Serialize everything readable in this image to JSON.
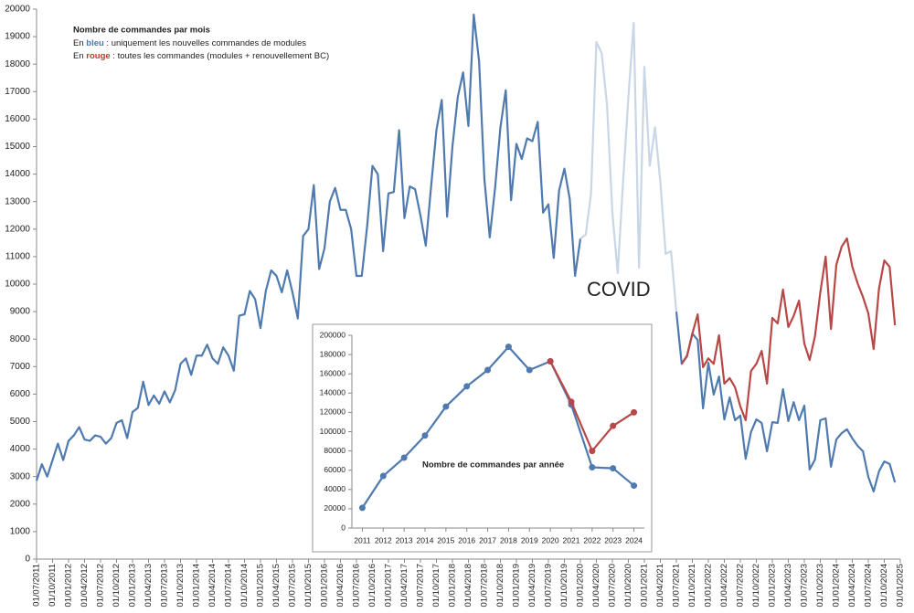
{
  "chart_data": [
    {
      "type": "line",
      "title": "Nombre de commandes par mois",
      "notes": [
        {
          "parts": [
            "En ",
            "bleu",
            " : uniquement les nouvelles commandes de modules"
          ],
          "color": "#4a78b0"
        },
        {
          "parts": [
            "En ",
            "rouge",
            " :  toutes les commandes  (modules + renouvellement BC)"
          ],
          "color": "#c0392b"
        }
      ],
      "highlight": {
        "label": "COVID",
        "from": "01/01/2020",
        "to": "01/07/2021",
        "color": "#c8d6e5",
        "label_color": "#c2cfdc"
      },
      "categories": [
        "01/07/2011",
        null,
        null,
        "01/10/2011",
        null,
        null,
        "01/01/2012",
        null,
        null,
        "01/04/2012",
        null,
        null,
        "01/07/2012",
        null,
        null,
        "01/10/2012",
        null,
        null,
        "01/01/2013",
        null,
        null,
        "01/04/2013",
        null,
        null,
        "01/07/2013",
        null,
        null,
        "01/10/2013",
        null,
        null,
        "01/01/2014",
        null,
        null,
        "01/04/2014",
        null,
        null,
        "01/07/2014",
        null,
        null,
        "01/10/2014",
        null,
        null,
        "01/01/2015",
        null,
        null,
        "01/04/2015",
        null,
        null,
        "01/07/2015",
        null,
        null,
        "01/10/2015",
        null,
        null,
        "01/01/2016",
        null,
        null,
        "01/04/2016",
        null,
        null,
        "01/07/2016",
        null,
        null,
        "01/10/2016",
        null,
        null,
        "01/01/2017",
        null,
        null,
        "01/04/2017",
        null,
        null,
        "01/07/2017",
        null,
        null,
        "01/10/2017",
        null,
        null,
        "01/01/2018",
        null,
        null,
        "01/04/2018",
        null,
        null,
        "01/07/2018",
        null,
        null,
        "01/10/2018",
        null,
        null,
        "01/01/2019",
        null,
        null,
        "01/04/2019",
        null,
        null,
        "01/07/2019",
        null,
        null,
        "01/10/2019",
        null,
        null,
        "01/01/2020",
        null,
        null,
        "01/04/2020",
        null,
        null,
        "01/07/2020",
        null,
        null,
        "01/10/2020",
        null,
        null,
        "01/01/2021",
        null,
        null,
        "01/04/2021",
        null,
        null,
        "01/07/2021",
        null,
        null,
        "01/10/2021",
        null,
        null,
        "01/01/2022",
        null,
        null,
        "01/04/2022",
        null,
        null,
        "01/07/2022",
        null,
        null,
        "01/10/2022",
        null,
        null,
        "01/01/2023",
        null,
        null,
        "01/04/2023",
        null,
        null,
        "01/07/2023",
        null,
        null,
        "01/10/2023",
        null,
        null,
        "01/01/2024",
        null,
        null,
        "01/04/2024",
        null,
        null,
        "01/07/2024",
        null,
        null,
        "01/10/2024",
        null,
        null,
        "01/01/2025"
      ],
      "series": [
        {
          "color": "#4f7ab0",
          "values": [
            2850,
            3450,
            3000,
            3600,
            4200,
            3600,
            4300,
            4500,
            4800,
            4350,
            4300,
            4500,
            4450,
            4200,
            4400,
            4950,
            5050,
            4400,
            5350,
            5500,
            6450,
            5600,
            5950,
            5650,
            6100,
            5700,
            6150,
            7100,
            7300,
            6700,
            7400,
            7400,
            7800,
            7300,
            7100,
            7700,
            7400,
            6850,
            8850,
            8900,
            9750,
            9450,
            8400,
            9750,
            10500,
            10300,
            9700,
            10500,
            9700,
            8750,
            11750,
            12000,
            13600,
            10550,
            11300,
            13000,
            13500,
            12700,
            12700,
            12000,
            10300,
            10300,
            12100,
            14300,
            14000,
            11200,
            13300,
            13350,
            15600,
            12400,
            13550,
            13450,
            12500,
            11400,
            13550,
            15600,
            16700,
            12450,
            15000,
            16800,
            17700,
            15750,
            19800,
            18100,
            13800,
            11700,
            13500,
            15700,
            17050,
            13050,
            15100,
            14550,
            15300,
            15200,
            15900,
            12600,
            12900,
            10950,
            13400,
            14200,
            13100,
            10300,
            11650,
            11800,
            13300,
            18800,
            18400,
            16500,
            12600,
            10400,
            13700,
            16800,
            19500,
            10600,
            17900,
            14300,
            15700,
            13700,
            11100,
            11200,
            9000,
            7100,
            7370,
            8200,
            7970,
            5480,
            7140,
            5980,
            6640,
            5080,
            5880,
            5050,
            5220,
            3650,
            4620,
            5080,
            4950,
            3920,
            4980,
            4950,
            6180,
            5020,
            5710,
            5050,
            5580,
            3260,
            3620,
            5050,
            5120,
            3360,
            4350,
            4580,
            4720,
            4390,
            4120,
            3920,
            2990,
            2460,
            3190,
            3550,
            3460,
            2790,
            null
          ]
        },
        {
          "color": "#b84747",
          "values": [
            null,
            null,
            null,
            null,
            null,
            null,
            null,
            null,
            null,
            null,
            null,
            null,
            null,
            null,
            null,
            null,
            null,
            null,
            null,
            null,
            null,
            null,
            null,
            null,
            null,
            null,
            null,
            null,
            null,
            null,
            null,
            null,
            null,
            null,
            null,
            null,
            null,
            null,
            null,
            null,
            null,
            null,
            null,
            null,
            null,
            null,
            null,
            null,
            null,
            null,
            null,
            null,
            null,
            null,
            null,
            null,
            null,
            null,
            null,
            null,
            null,
            null,
            null,
            null,
            null,
            null,
            null,
            null,
            null,
            null,
            null,
            null,
            null,
            null,
            null,
            null,
            null,
            null,
            null,
            null,
            null,
            null,
            null,
            null,
            null,
            null,
            null,
            null,
            null,
            null,
            null,
            null,
            null,
            null,
            null,
            null,
            null,
            null,
            null,
            null,
            null,
            null,
            null,
            null,
            null,
            null,
            null,
            null,
            null,
            null,
            null,
            null,
            null,
            null,
            null,
            null,
            null,
            null,
            null,
            null,
            null,
            7100,
            7400,
            8200,
            8900,
            6980,
            7300,
            7100,
            8140,
            6380,
            6580,
            6250,
            5550,
            5050,
            6840,
            7100,
            7570,
            6380,
            8770,
            8570,
            9800,
            8440,
            8840,
            9400,
            7840,
            7240,
            8110,
            9700,
            11000,
            8370,
            10700,
            11360,
            11660,
            10630,
            10030,
            9530,
            8940,
            7640,
            9830,
            10860,
            10630,
            8500,
            null
          ]
        }
      ],
      "ylim": [
        0,
        20000
      ],
      "yticks": [
        0,
        1000,
        2000,
        3000,
        4000,
        5000,
        6000,
        7000,
        8000,
        9000,
        10000,
        11000,
        12000,
        13000,
        14000,
        15000,
        16000,
        17000,
        18000,
        19000,
        20000
      ]
    },
    {
      "type": "line",
      "title": "Nombre de commandes par année",
      "categories": [
        "2011",
        "2012",
        "2013",
        "2014",
        "2015",
        "2016",
        "2017",
        "2018",
        "2019",
        "2020",
        "2021",
        "2022",
        "2023",
        "2024"
      ],
      "series": [
        {
          "color": "#4f7ab0",
          "values": [
            21000,
            54000,
            73000,
            96000,
            126000,
            147000,
            164000,
            188000,
            164000,
            173000,
            128000,
            63000,
            62000,
            44000
          ]
        },
        {
          "color": "#b84747",
          "values": [
            null,
            null,
            null,
            null,
            null,
            null,
            null,
            null,
            null,
            173000,
            131000,
            80000,
            106000,
            120000
          ]
        }
      ],
      "markers": true,
      "ylim": [
        0,
        200000
      ],
      "yticks": [
        0,
        20000,
        40000,
        60000,
        80000,
        100000,
        120000,
        140000,
        160000,
        180000,
        200000
      ]
    }
  ]
}
